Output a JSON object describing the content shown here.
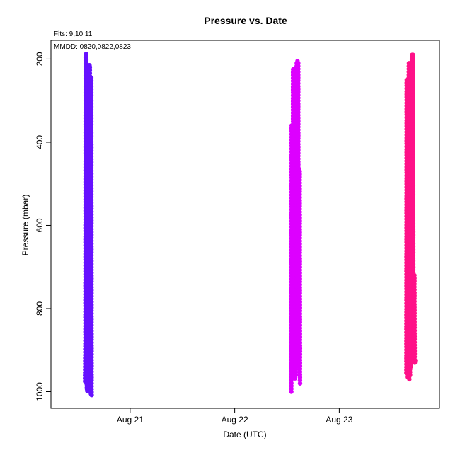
{
  "chart_data": {
    "type": "scatter",
    "title": "Pressure  vs. Date",
    "xlabel": "Date (UTC)",
    "ylabel": "Pressure (mbar)",
    "notes": [
      "Flts: 9,10,11",
      "MMDD: 0820,0822,0823"
    ],
    "x_axis": {
      "type": "date",
      "range": [
        "2013-08-20T05:50",
        "2013-08-23T23:00"
      ],
      "ticks": [
        {
          "value": "2013-08-21T00:00",
          "label": "Aug 21"
        },
        {
          "value": "2013-08-22T00:00",
          "label": "Aug 22"
        },
        {
          "value": "2013-08-23T00:00",
          "label": "Aug 23"
        }
      ]
    },
    "y_axis": {
      "range": [
        1040,
        155
      ],
      "inverted": true,
      "ticks": [
        200,
        400,
        600,
        800,
        1000
      ]
    },
    "grid": false,
    "series": [
      {
        "flight": "9",
        "date": "0820",
        "color": "#6611ff",
        "x": [
          "2013-08-20T13:40",
          "2013-08-20T13:45",
          "2013-08-20T13:50",
          "2013-08-20T13:55",
          "2013-08-20T14:00",
          "2013-08-20T14:05",
          "2013-08-20T14:10",
          "2013-08-20T14:15",
          "2013-08-20T14:20",
          "2013-08-20T14:25",
          "2013-08-20T14:30",
          "2013-08-20T14:35",
          "2013-08-20T14:40",
          "2013-08-20T14:45",
          "2013-08-20T14:50",
          "2013-08-20T14:55",
          "2013-08-20T15:00",
          "2013-08-20T15:05",
          "2013-08-20T15:10"
        ],
        "y": [
          975,
          870,
          190,
          188,
          250,
          990,
          998,
          230,
          215,
          218,
          680,
          900,
          215,
          220,
          960,
          990,
          1005,
          245,
          1008
        ]
      },
      {
        "flight": "10",
        "date": "0822",
        "color": "#dd00ff",
        "x": [
          "2013-08-22T13:00",
          "2013-08-22T13:05",
          "2013-08-22T13:10",
          "2013-08-22T13:15",
          "2013-08-22T13:20",
          "2013-08-22T13:25",
          "2013-08-22T13:30",
          "2013-08-22T13:35",
          "2013-08-22T13:40",
          "2013-08-22T13:45",
          "2013-08-22T13:50",
          "2013-08-22T13:55",
          "2013-08-22T14:00",
          "2013-08-22T14:05",
          "2013-08-22T14:10",
          "2013-08-22T14:15",
          "2013-08-22T14:20",
          "2013-08-22T14:25",
          "2013-08-22T14:30",
          "2013-08-22T14:35",
          "2013-08-22T14:40",
          "2013-08-22T14:45",
          "2013-08-22T14:50",
          "2013-08-22T14:55",
          "2013-08-22T15:00"
        ],
        "y": [
          1000,
          360,
          955,
          365,
          930,
          225,
          800,
          225,
          795,
          240,
          968,
          225,
          940,
          222,
          935,
          210,
          930,
          205,
          905,
          210,
          900,
          465,
          960,
          470,
          980
        ]
      },
      {
        "flight": "11",
        "date": "0823",
        "color": "#ff1188",
        "x": [
          "2013-08-23T15:25",
          "2013-08-23T15:30",
          "2013-08-23T15:35",
          "2013-08-23T15:40",
          "2013-08-23T15:45",
          "2013-08-23T15:50",
          "2013-08-23T15:55",
          "2013-08-23T16:00",
          "2013-08-23T16:05",
          "2013-08-23T16:10",
          "2013-08-23T16:15",
          "2013-08-23T16:20",
          "2013-08-23T16:25",
          "2013-08-23T16:30",
          "2013-08-23T16:35",
          "2013-08-23T16:40",
          "2013-08-23T16:45",
          "2013-08-23T16:50",
          "2013-08-23T16:55",
          "2013-08-23T17:00",
          "2013-08-23T17:05",
          "2013-08-23T17:10",
          "2013-08-23T17:15",
          "2013-08-23T17:20",
          "2013-08-23T17:25"
        ],
        "y": [
          955,
          250,
          965,
          255,
          960,
          295,
          935,
          210,
          970,
          245,
          960,
          300,
          940,
          230,
          225,
          200,
          190,
          192,
          190,
          700,
          910,
          895,
          720,
          930,
          925
        ]
      }
    ]
  }
}
